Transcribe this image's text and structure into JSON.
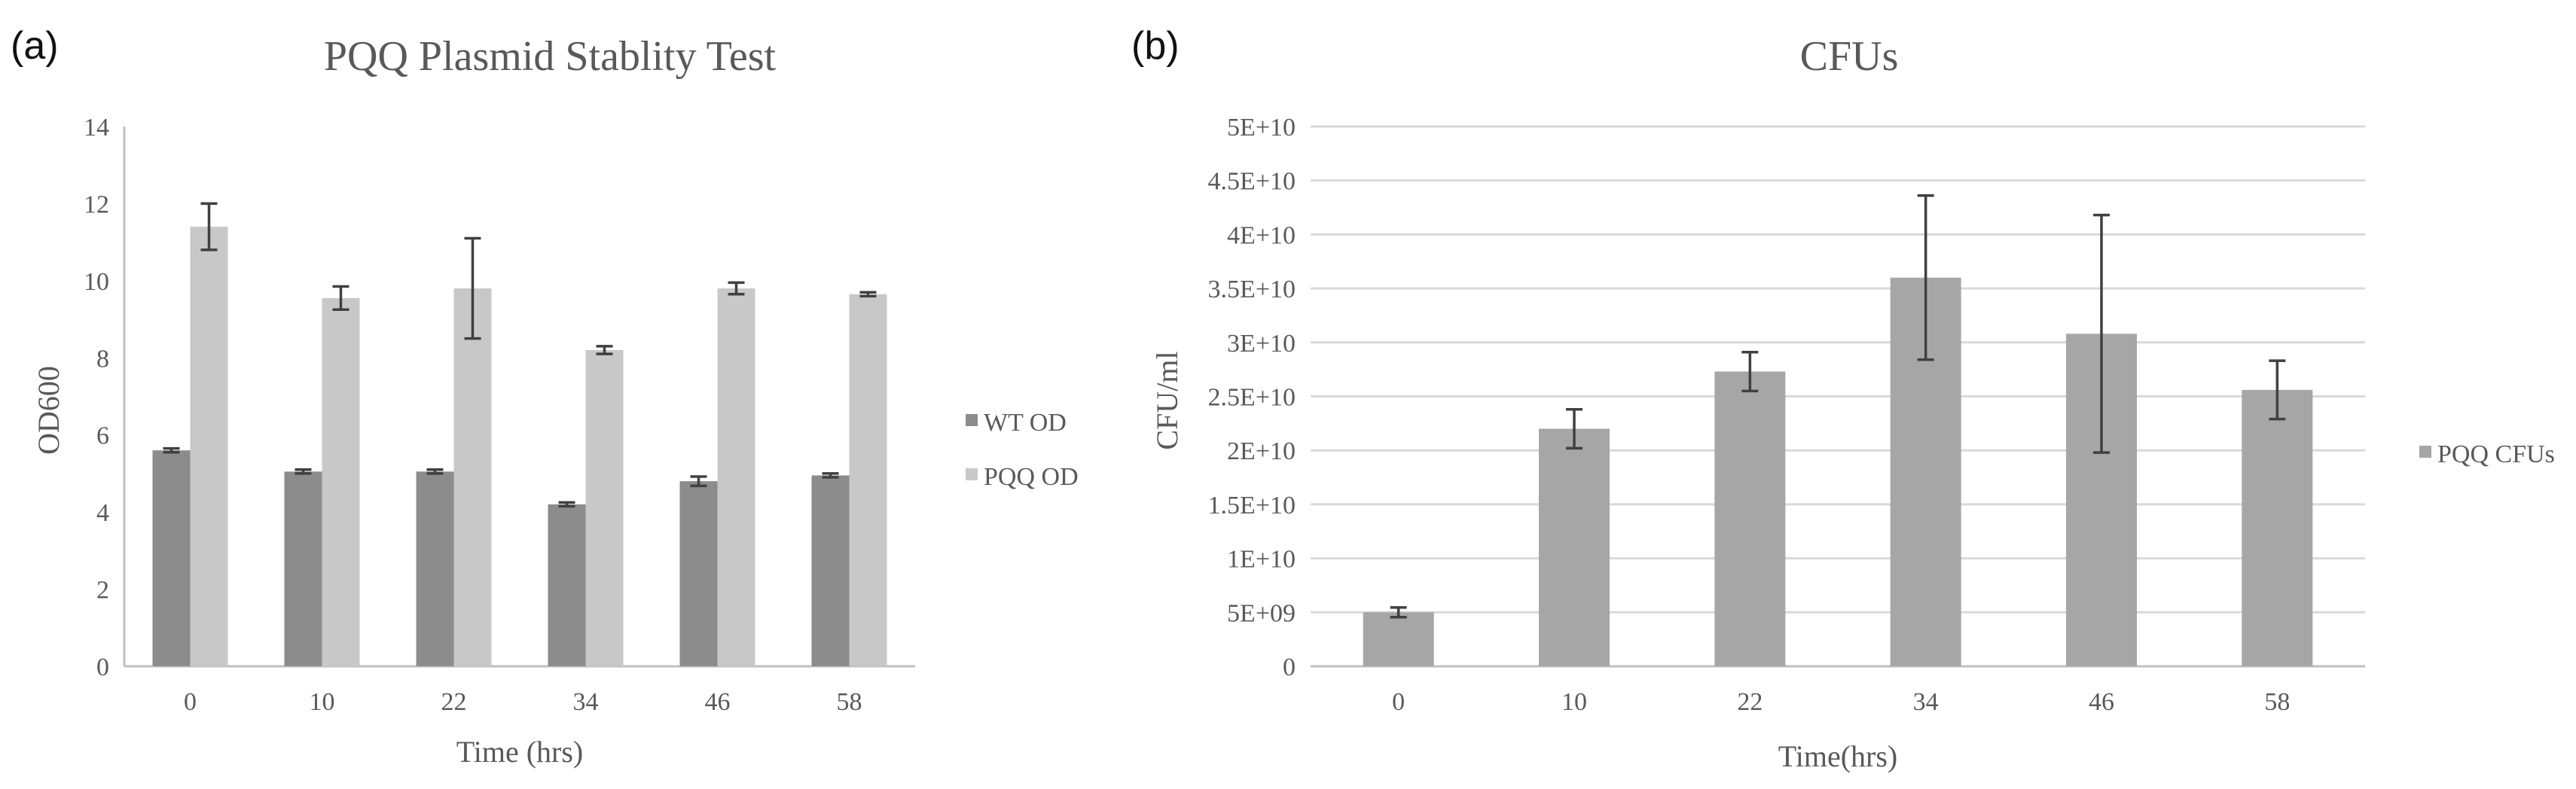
{
  "panels": {
    "a_label": "(a)",
    "b_label": "(b)"
  },
  "chart_data": [
    {
      "type": "bar",
      "title": "PQQ Plasmid Stablity Test",
      "xlabel": "Time (hrs)",
      "ylabel": "OD600",
      "categories": [
        "0",
        "10",
        "22",
        "34",
        "46",
        "58"
      ],
      "ylim": [
        0,
        14
      ],
      "yticks": [
        "0",
        "2",
        "4",
        "6",
        "8",
        "10",
        "12",
        "14"
      ],
      "grid": false,
      "legend_position": "right",
      "series": [
        {
          "name": "WT OD",
          "color": "#8c8c8c",
          "values": [
            5.6,
            5.05,
            5.05,
            4.2,
            4.8,
            4.95
          ],
          "errors": [
            0.05,
            0.05,
            0.05,
            0.05,
            0.12,
            0.05
          ]
        },
        {
          "name": "PQQ OD",
          "color": "#c8c8c8",
          "values": [
            11.4,
            9.55,
            9.8,
            8.2,
            9.8,
            9.65
          ],
          "errors": [
            0.6,
            0.3,
            1.3,
            0.1,
            0.15,
            0.05
          ]
        }
      ]
    },
    {
      "type": "bar",
      "title": "CFUs",
      "xlabel": "Time(hrs)",
      "ylabel": "CFU/ml",
      "categories": [
        "0",
        "10",
        "22",
        "34",
        "46",
        "58"
      ],
      "ylim": [
        0,
        50000000000
      ],
      "yticks": [
        "0",
        "5E+09",
        "1E+10",
        "1.5E+10",
        "2E+10",
        "2.5E+10",
        "3E+10",
        "3.5E+10",
        "4E+10",
        "4.5E+10",
        "5E+10"
      ],
      "grid": true,
      "legend_position": "right",
      "series": [
        {
          "name": "PQQ CFUs",
          "color": "#a6a6a6",
          "values": [
            5000000000,
            22000000000,
            27300000000,
            36000000000,
            30800000000,
            25600000000
          ],
          "errors": [
            450000000,
            1800000000,
            1800000000,
            7600000000,
            11000000000,
            2700000000
          ]
        }
      ]
    }
  ]
}
